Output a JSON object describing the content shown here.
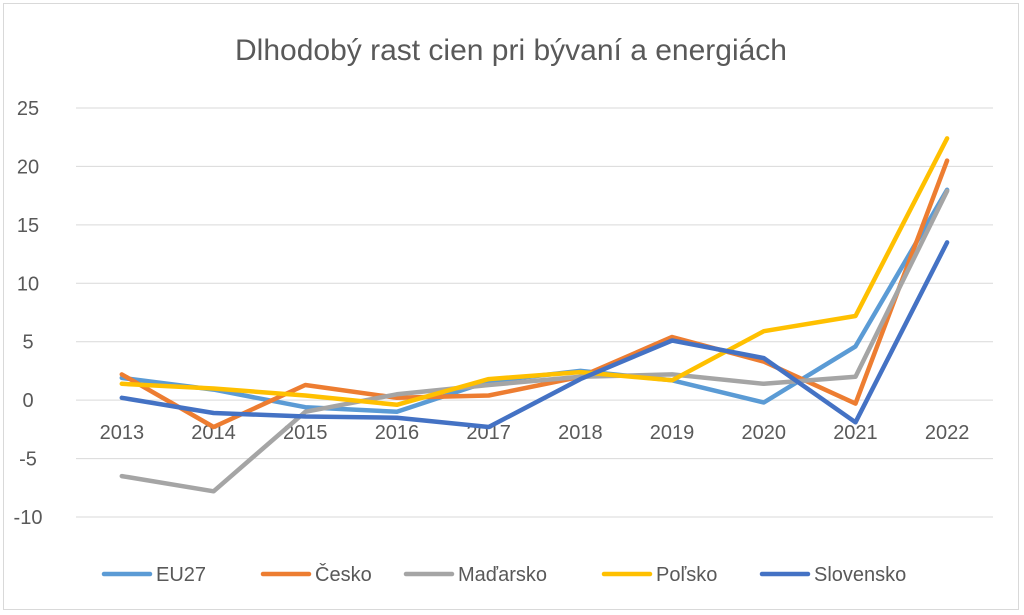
{
  "chart_data": {
    "type": "line",
    "title": "Dlhodobý rast cien pri bývaní a energiách",
    "xlabel": "",
    "ylabel": "",
    "x": [
      "2013",
      "2014",
      "2015",
      "2016",
      "2017",
      "2018",
      "2019",
      "2020",
      "2021",
      "2022"
    ],
    "ylim": [
      -10,
      25
    ],
    "yticks": [
      25,
      20,
      15,
      10,
      5,
      0,
      -5,
      -10
    ],
    "grid": true,
    "legend_position": "bottom",
    "series": [
      {
        "name": "EU27",
        "color": "#5B9BD5",
        "values": [
          1.9,
          0.9,
          -0.6,
          -1.0,
          1.6,
          2.5,
          1.7,
          -0.2,
          4.6,
          18.0
        ]
      },
      {
        "name": "Česko",
        "color": "#ED7D31",
        "values": [
          2.2,
          -2.3,
          1.3,
          0.2,
          0.4,
          2.0,
          5.4,
          3.3,
          -0.3,
          20.5
        ]
      },
      {
        "name": "Maďarsko",
        "color": "#A5A5A5",
        "values": [
          -6.5,
          -7.8,
          -1.0,
          0.5,
          1.3,
          2.0,
          2.2,
          1.4,
          2.0,
          17.9
        ]
      },
      {
        "name": "Poľsko",
        "color": "#FFC000",
        "values": [
          1.4,
          1.0,
          0.4,
          -0.4,
          1.8,
          2.4,
          1.7,
          5.9,
          7.2,
          22.4
        ]
      },
      {
        "name": "Slovensko",
        "color": "#4472C4",
        "values": [
          0.2,
          -1.1,
          -1.4,
          -1.5,
          -2.3,
          1.8,
          5.1,
          3.6,
          -1.9,
          13.5
        ]
      }
    ]
  }
}
